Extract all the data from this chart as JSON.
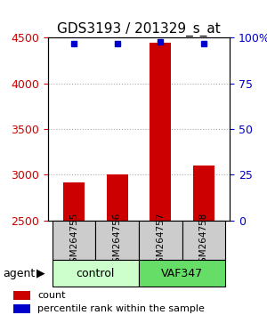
{
  "title": "GDS3193 / 201329_s_at",
  "samples": [
    "GSM264755",
    "GSM264756",
    "GSM264757",
    "GSM264758"
  ],
  "counts": [
    2920,
    3000,
    4450,
    3100
  ],
  "percentiles": [
    97,
    97,
    98,
    97
  ],
  "ylim_left": [
    2500,
    4500
  ],
  "ylim_right": [
    0,
    100
  ],
  "yticks_left": [
    2500,
    3000,
    3500,
    4000,
    4500
  ],
  "yticks_right": [
    0,
    25,
    50,
    75,
    100
  ],
  "ytick_labels_right": [
    "0",
    "25",
    "50",
    "75",
    "100%"
  ],
  "bar_color": "#cc0000",
  "dot_color": "#0000cc",
  "groups": [
    {
      "label": "control",
      "samples": [
        0,
        1
      ],
      "color": "#ccffcc"
    },
    {
      "label": "VAF347",
      "samples": [
        2,
        3
      ],
      "color": "#66dd66"
    }
  ],
  "agent_label": "agent",
  "legend_count_label": "count",
  "legend_pct_label": "percentile rank within the sample",
  "grid_color": "#aaaaaa",
  "title_fontsize": 11,
  "tick_fontsize": 9,
  "sample_box_color": "#cccccc",
  "background_color": "#ffffff"
}
